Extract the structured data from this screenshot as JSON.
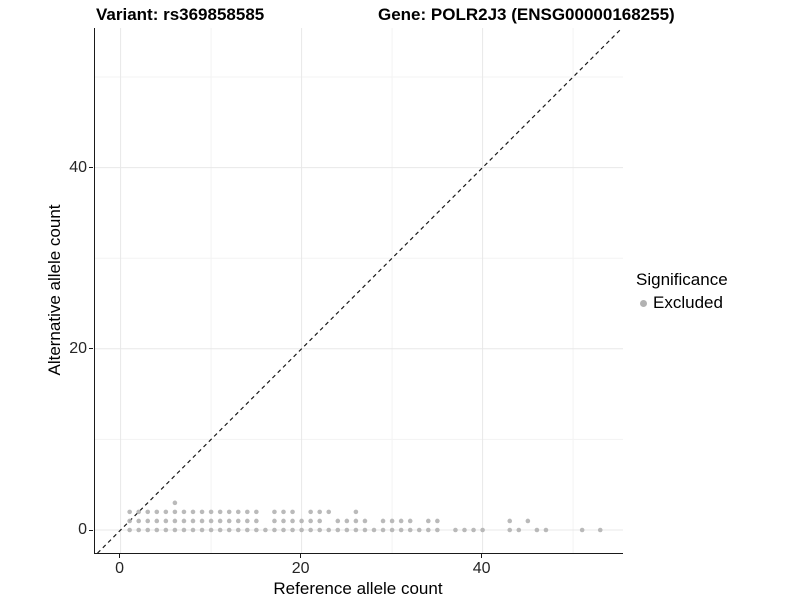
{
  "titles": {
    "left": "Variant: rs369858585",
    "right": "Gene: POLR2J3 (ENSG00000168255)"
  },
  "axes": {
    "x": {
      "label": "Reference allele count",
      "ticks": [
        0,
        20,
        40
      ],
      "minor_ticks": [
        10,
        30,
        50
      ],
      "range": [
        -2.8,
        55.5
      ]
    },
    "y": {
      "label": "Alternative allele count",
      "ticks": [
        0,
        20,
        40
      ],
      "minor_ticks": [
        10,
        30,
        50
      ],
      "range": [
        -2.6,
        55.4
      ]
    }
  },
  "legend": {
    "title": "Significance",
    "items": [
      {
        "label": "Excluded",
        "color": "#b2b2b2"
      }
    ]
  },
  "colors": {
    "point": "#b2b2b2",
    "major_grid": "#e8e8e8",
    "minor_grid": "#f3f3f3",
    "identity_line": "#1a1a1a",
    "axis_line": "#1a1a1a"
  },
  "chart_data": {
    "type": "scatter",
    "title": "Variant: rs369858585 — Gene: POLR2J3 (ENSG00000168255)",
    "xlabel": "Reference allele count",
    "ylabel": "Alternative allele count",
    "xlim": [
      -2.8,
      55.5
    ],
    "ylim": [
      -2.6,
      55.4
    ],
    "grid": "on",
    "legend_position": "right",
    "identity_line": {
      "equation": "y = x",
      "style": "dashed",
      "color": "#1a1a1a"
    },
    "series": [
      {
        "name": "Excluded",
        "color": "#b2b2b2",
        "points": [
          [
            1,
            0
          ],
          [
            2,
            0
          ],
          [
            3,
            0
          ],
          [
            4,
            0
          ],
          [
            5,
            0
          ],
          [
            6,
            0
          ],
          [
            7,
            0
          ],
          [
            8,
            0
          ],
          [
            9,
            0
          ],
          [
            10,
            0
          ],
          [
            11,
            0
          ],
          [
            12,
            0
          ],
          [
            13,
            0
          ],
          [
            14,
            0
          ],
          [
            15,
            0
          ],
          [
            16,
            0
          ],
          [
            17,
            0
          ],
          [
            18,
            0
          ],
          [
            19,
            0
          ],
          [
            20,
            0
          ],
          [
            21,
            0
          ],
          [
            22,
            0
          ],
          [
            23,
            0
          ],
          [
            24,
            0
          ],
          [
            25,
            0
          ],
          [
            26,
            0
          ],
          [
            27,
            0
          ],
          [
            28,
            0
          ],
          [
            29,
            0
          ],
          [
            30,
            0
          ],
          [
            31,
            0
          ],
          [
            32,
            0
          ],
          [
            33,
            0
          ],
          [
            34,
            0
          ],
          [
            35,
            0
          ],
          [
            37,
            0
          ],
          [
            38,
            0
          ],
          [
            39,
            0
          ],
          [
            40,
            0
          ],
          [
            43,
            0
          ],
          [
            44,
            0
          ],
          [
            46,
            0
          ],
          [
            47,
            0
          ],
          [
            51,
            0
          ],
          [
            53,
            0
          ],
          [
            1,
            1
          ],
          [
            2,
            1
          ],
          [
            3,
            1
          ],
          [
            4,
            1
          ],
          [
            5,
            1
          ],
          [
            6,
            1
          ],
          [
            7,
            1
          ],
          [
            8,
            1
          ],
          [
            9,
            1
          ],
          [
            10,
            1
          ],
          [
            11,
            1
          ],
          [
            12,
            1
          ],
          [
            13,
            1
          ],
          [
            14,
            1
          ],
          [
            15,
            1
          ],
          [
            17,
            1
          ],
          [
            18,
            1
          ],
          [
            19,
            1
          ],
          [
            20,
            1
          ],
          [
            21,
            1
          ],
          [
            22,
            1
          ],
          [
            24,
            1
          ],
          [
            25,
            1
          ],
          [
            26,
            1
          ],
          [
            27,
            1
          ],
          [
            29,
            1
          ],
          [
            30,
            1
          ],
          [
            31,
            1
          ],
          [
            32,
            1
          ],
          [
            34,
            1
          ],
          [
            35,
            1
          ],
          [
            43,
            1
          ],
          [
            45,
            1
          ],
          [
            1,
            2
          ],
          [
            2,
            2
          ],
          [
            3,
            2
          ],
          [
            4,
            2
          ],
          [
            5,
            2
          ],
          [
            6,
            2
          ],
          [
            7,
            2
          ],
          [
            8,
            2
          ],
          [
            9,
            2
          ],
          [
            10,
            2
          ],
          [
            11,
            2
          ],
          [
            12,
            2
          ],
          [
            13,
            2
          ],
          [
            14,
            2
          ],
          [
            15,
            2
          ],
          [
            17,
            2
          ],
          [
            18,
            2
          ],
          [
            19,
            2
          ],
          [
            21,
            2
          ],
          [
            22,
            2
          ],
          [
            23,
            2
          ],
          [
            26,
            2
          ],
          [
            6,
            3
          ]
        ]
      }
    ]
  }
}
